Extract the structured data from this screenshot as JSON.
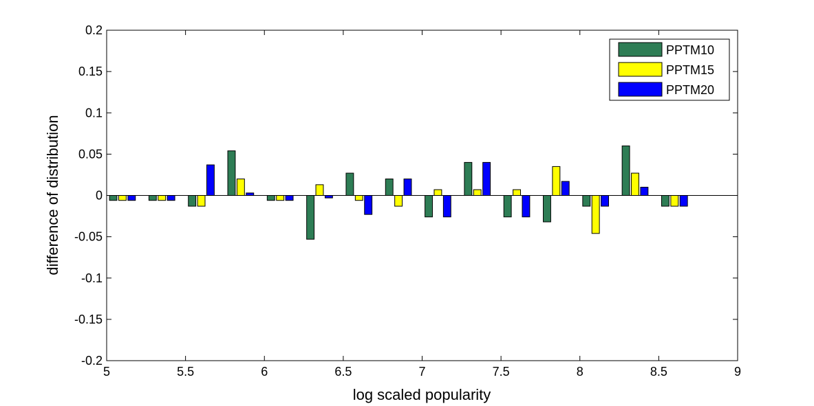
{
  "chart_data": {
    "type": "bar",
    "title": "",
    "xlabel": "log scaled popularity",
    "ylabel": "difference of distribution",
    "xlim": [
      5,
      9
    ],
    "ylim": [
      -0.2,
      0.2
    ],
    "xticks": [
      "5",
      "5.5",
      "6",
      "6.5",
      "7",
      "7.5",
      "8",
      "8.5",
      "9"
    ],
    "yticks": [
      "0.2",
      "0.15",
      "0.1",
      "0.05",
      "0",
      "-0.05",
      "-0.1",
      "-0.15",
      "-0.2"
    ],
    "xtick_values": [
      5,
      5.5,
      6,
      6.5,
      7,
      7.5,
      8,
      8.5,
      9
    ],
    "ytick_values": [
      0.2,
      0.15,
      0.1,
      0.05,
      0,
      -0.05,
      -0.1,
      -0.15,
      -0.2
    ],
    "x": [
      5.1,
      5.35,
      5.6,
      5.85,
      6.1,
      6.35,
      6.6,
      6.85,
      7.1,
      7.35,
      7.6,
      7.85,
      8.1,
      8.35,
      8.6
    ],
    "series": [
      {
        "name": "PPTM10",
        "color": "#2e7d55",
        "values": [
          -0.006,
          -0.006,
          -0.013,
          0.054,
          -0.006,
          -0.053,
          0.027,
          0.02,
          -0.026,
          0.04,
          -0.026,
          -0.032,
          -0.013,
          0.06,
          -0.013
        ]
      },
      {
        "name": "PPTM15",
        "color": "#ffff00",
        "values": [
          -0.006,
          -0.006,
          -0.013,
          0.02,
          -0.006,
          0.013,
          -0.006,
          -0.013,
          0.007,
          0.007,
          0.007,
          0.035,
          -0.046,
          0.027,
          -0.013
        ]
      },
      {
        "name": "PPTM20",
        "color": "#0000ff",
        "values": [
          -0.006,
          -0.006,
          0.037,
          0.003,
          -0.006,
          -0.003,
          -0.023,
          0.02,
          -0.026,
          0.04,
          -0.026,
          0.017,
          -0.013,
          0.01,
          -0.013
        ]
      }
    ],
    "legend_position": "top-right",
    "grid": false
  }
}
